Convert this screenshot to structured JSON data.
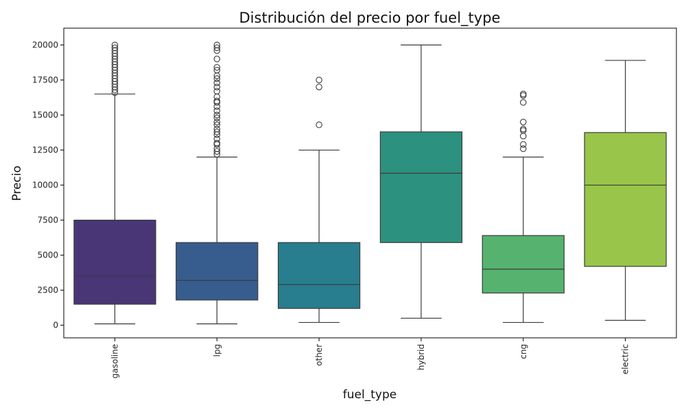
{
  "chart_data": {
    "type": "box",
    "title": "Distribución del precio por fuel_type",
    "xlabel": "fuel_type",
    "ylabel": "Precio",
    "ylim": [
      -900,
      21200
    ],
    "yticks": [
      0,
      2500,
      5000,
      7500,
      10000,
      12500,
      15000,
      17500,
      20000
    ],
    "xtick_rotation": "vertical",
    "grid": false,
    "legend": "none",
    "series": [
      {
        "category": "gasoline",
        "color": "#483677",
        "whisker_low": 100,
        "q1": 1500,
        "median": 3500,
        "q3": 7500,
        "whisker_high": 16500,
        "outliers": [
          16600,
          16800,
          17000,
          17200,
          17400,
          17600,
          17800,
          18000,
          18200,
          18400,
          18600,
          18800,
          19000,
          19200,
          19400,
          19600,
          19800,
          20000
        ]
      },
      {
        "category": "lpg",
        "color": "#365d8d",
        "whisker_low": 100,
        "q1": 1800,
        "median": 3200,
        "q3": 5900,
        "whisker_high": 12000,
        "outliers": [
          12200,
          12400,
          12600,
          12900,
          13000,
          13300,
          13600,
          13800,
          14000,
          14300,
          14500,
          14800,
          15000,
          15300,
          15600,
          15900,
          16000,
          16300,
          16700,
          17000,
          17300,
          17600,
          17800,
          18200,
          18400,
          19000,
          19600,
          19800,
          20000
        ]
      },
      {
        "category": "other",
        "color": "#287d8e",
        "whisker_low": 200,
        "q1": 1200,
        "median": 2900,
        "q3": 5900,
        "whisker_high": 12500,
        "outliers": [
          14300,
          17000,
          17500
        ]
      },
      {
        "category": "hybrid",
        "color": "#2d917f",
        "whisker_low": 500,
        "q1": 5900,
        "median": 10850,
        "q3": 13800,
        "whisker_high": 20000,
        "outliers": []
      },
      {
        "category": "cng",
        "color": "#56b36f",
        "whisker_low": 200,
        "q1": 2300,
        "median": 4000,
        "q3": 6400,
        "whisker_high": 12000,
        "outliers": [
          12600,
          12900,
          13500,
          13900,
          14000,
          14500,
          15900,
          16400,
          16500
        ]
      },
      {
        "category": "electric",
        "color": "#98c54a",
        "whisker_low": 350,
        "q1": 4200,
        "median": 10000,
        "q3": 13750,
        "whisker_high": 18900,
        "outliers": []
      }
    ]
  }
}
